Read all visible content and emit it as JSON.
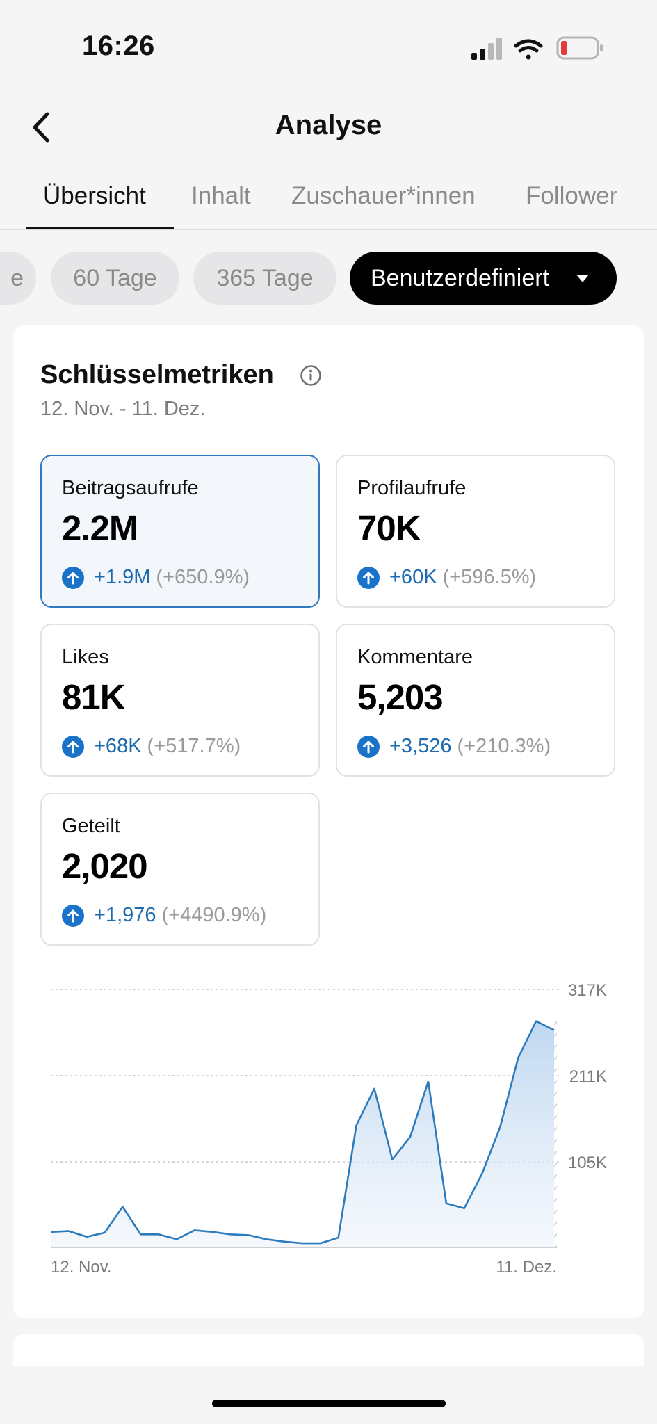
{
  "status_bar": {
    "time": "16:26",
    "battery_color": "#e23b3b"
  },
  "header": {
    "title": "Analyse",
    "back_icon": "chevron-left-icon"
  },
  "tabs": [
    {
      "label": "Übersicht",
      "active": true
    },
    {
      "label": "Inhalt",
      "active": false
    },
    {
      "label": "Zuschauer*innen",
      "active": false
    },
    {
      "label": "Follower",
      "active": false
    }
  ],
  "range_chips": [
    {
      "label": "e",
      "selected": false
    },
    {
      "label": "60 Tage",
      "selected": false
    },
    {
      "label": "365 Tage",
      "selected": false
    },
    {
      "label": "Benutzerdefiniert",
      "selected": true
    }
  ],
  "key_metrics": {
    "title": "Schlüsselmetriken",
    "date_range": "12. Nov. - 11. Dez.",
    "items": [
      {
        "label": "Beitragsaufrufe",
        "value": "2.2M",
        "delta": "+1.9M",
        "percent": "(+650.9%)",
        "active": true
      },
      {
        "label": "Profilaufrufe",
        "value": "70K",
        "delta": "+60K",
        "percent": "(+596.5%)",
        "active": false
      },
      {
        "label": "Likes",
        "value": "81K",
        "delta": "+68K",
        "percent": "(+517.7%)",
        "active": false
      },
      {
        "label": "Kommentare",
        "value": "5,203",
        "delta": "+3,526",
        "percent": "(+210.3%)",
        "active": false
      },
      {
        "label": "Geteilt",
        "value": "2,020",
        "delta": "+1,976",
        "percent": "(+4490.9%)",
        "active": false
      }
    ]
  },
  "colors": {
    "accent": "#1e6bb0",
    "up_icon": "#1a73c8",
    "active_border": "#2d7ac0"
  },
  "chart_data": {
    "type": "area",
    "title": "Beitragsaufrufe",
    "x_start_label": "12. Nov.",
    "x_end_label": "11. Dez.",
    "y_ticks": [
      {
        "value": 317000,
        "label": "317K"
      },
      {
        "value": 211000,
        "label": "211K"
      },
      {
        "value": 105000,
        "label": "105K"
      }
    ],
    "ylim": [
      0,
      317000
    ],
    "grid": true,
    "series": [
      {
        "name": "Beitragsaufrufe",
        "values": [
          19000,
          20000,
          13000,
          18000,
          50000,
          16000,
          16000,
          10000,
          21000,
          19000,
          16000,
          15000,
          10000,
          7000,
          5000,
          5000,
          12000,
          150000,
          195000,
          108000,
          136000,
          204000,
          54000,
          48000,
          91000,
          148000,
          233000,
          278000,
          267000
        ]
      }
    ],
    "partial_last_point": true
  }
}
